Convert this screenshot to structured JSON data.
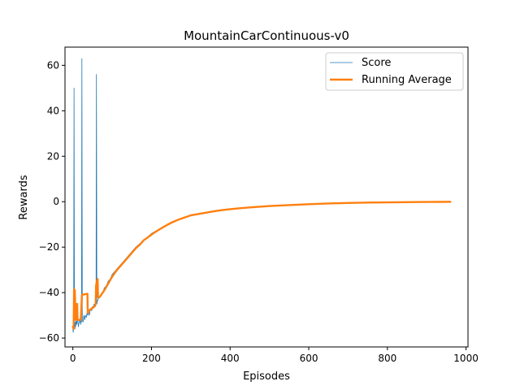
{
  "chart_data": {
    "type": "line",
    "title": "MountainCarContinuous-v0",
    "xlabel": "Episodes",
    "ylabel": "Rewards",
    "xlim": [
      -20,
      1005
    ],
    "ylim": [
      -63.9,
      68
    ],
    "xticks": [
      0,
      200,
      400,
      600,
      800,
      1000
    ],
    "yticks": [
      -60,
      -40,
      -20,
      0,
      20,
      40,
      60
    ],
    "grid": false,
    "legend_position": "top-right",
    "series": [
      {
        "name": "Score",
        "color": "#1f77b4",
        "style": "thin-line",
        "points": [
          [
            0,
            -56
          ],
          [
            1,
            -57.5
          ],
          [
            2,
            -55
          ],
          [
            3,
            50
          ],
          [
            4,
            -54
          ],
          [
            5,
            -56
          ],
          [
            6,
            -53
          ],
          [
            7,
            -55
          ],
          [
            8,
            -52
          ],
          [
            10,
            -54
          ],
          [
            12,
            -51
          ],
          [
            14,
            -55
          ],
          [
            16,
            -53
          ],
          [
            18,
            -52
          ],
          [
            20,
            -54
          ],
          [
            21,
            -51
          ],
          [
            22,
            -53
          ],
          [
            23,
            63
          ],
          [
            24,
            -52
          ],
          [
            26,
            -53
          ],
          [
            28,
            -50
          ],
          [
            30,
            -52
          ],
          [
            32,
            -50
          ],
          [
            34,
            -51
          ],
          [
            36,
            -49
          ],
          [
            38,
            -50
          ],
          [
            40,
            -48
          ],
          [
            42,
            -50
          ],
          [
            44,
            -48
          ],
          [
            46,
            -47
          ],
          [
            48,
            -48
          ],
          [
            50,
            -46
          ],
          [
            52,
            -47
          ],
          [
            54,
            -45
          ],
          [
            56,
            -46
          ],
          [
            58,
            -44
          ],
          [
            59,
            -45
          ],
          [
            60,
            56
          ],
          [
            61,
            -45
          ],
          [
            62,
            -44
          ],
          [
            64,
            -43
          ],
          [
            68,
            -42
          ],
          [
            72,
            -41
          ],
          [
            76,
            -40
          ],
          [
            80,
            -38
          ],
          [
            85,
            -37
          ],
          [
            90,
            -35
          ],
          [
            95,
            -34
          ],
          [
            100,
            -32
          ],
          [
            110,
            -30
          ],
          [
            120,
            -28
          ],
          [
            130,
            -26
          ],
          [
            140,
            -24
          ],
          [
            150,
            -22
          ],
          [
            160,
            -20
          ],
          [
            170,
            -18.5
          ],
          [
            180,
            -17
          ],
          [
            190,
            -15.5
          ],
          [
            200,
            -14
          ],
          [
            210,
            -13
          ],
          [
            220,
            -12
          ],
          [
            230,
            -11
          ],
          [
            240,
            -10
          ],
          [
            250,
            -9
          ],
          [
            260,
            -8.3
          ],
          [
            270,
            -7.6
          ],
          [
            280,
            -7
          ],
          [
            290,
            -6.5
          ],
          [
            300,
            -6
          ],
          [
            320,
            -5.4
          ],
          [
            340,
            -4.8
          ],
          [
            360,
            -4.2
          ],
          [
            380,
            -3.7
          ],
          [
            400,
            -3.3
          ],
          [
            430,
            -2.8
          ],
          [
            460,
            -2.4
          ],
          [
            500,
            -1.9
          ],
          [
            550,
            -1.5
          ],
          [
            600,
            -1.1
          ],
          [
            650,
            -0.8
          ],
          [
            700,
            -0.55
          ],
          [
            750,
            -0.4
          ],
          [
            800,
            -0.28
          ],
          [
            850,
            -0.2
          ],
          [
            900,
            -0.12
          ],
          [
            960,
            -0.05
          ]
        ]
      },
      {
        "name": "Running Average",
        "color": "#ff7f0e",
        "style": "thick-line",
        "points": [
          [
            0,
            -55
          ],
          [
            2,
            -56
          ],
          [
            3,
            -38.5
          ],
          [
            5,
            -39
          ],
          [
            6,
            -46
          ],
          [
            7,
            -52
          ],
          [
            8,
            -45
          ],
          [
            11,
            -45
          ],
          [
            12,
            -52
          ],
          [
            20,
            -52
          ],
          [
            21,
            -49
          ],
          [
            23,
            -41
          ],
          [
            37,
            -40.5
          ],
          [
            38,
            -49
          ],
          [
            39,
            -49
          ],
          [
            40,
            -48
          ],
          [
            48,
            -47
          ],
          [
            56,
            -46
          ],
          [
            58,
            -45
          ],
          [
            59,
            -37
          ],
          [
            61,
            -35
          ],
          [
            63,
            -34
          ],
          [
            64,
            -42
          ],
          [
            68,
            -42
          ],
          [
            72,
            -41
          ],
          [
            80,
            -39
          ],
          [
            90,
            -36
          ],
          [
            100,
            -33
          ],
          [
            110,
            -30.5
          ],
          [
            120,
            -28.5
          ],
          [
            130,
            -26.5
          ],
          [
            140,
            -24.5
          ],
          [
            150,
            -22.5
          ],
          [
            160,
            -20.5
          ],
          [
            170,
            -19
          ],
          [
            180,
            -17
          ],
          [
            190,
            -15.8
          ],
          [
            200,
            -14.5
          ],
          [
            210,
            -13.3
          ],
          [
            220,
            -12.2
          ],
          [
            230,
            -11.2
          ],
          [
            240,
            -10.2
          ],
          [
            250,
            -9.3
          ],
          [
            260,
            -8.5
          ],
          [
            270,
            -7.8
          ],
          [
            280,
            -7.2
          ],
          [
            290,
            -6.6
          ],
          [
            300,
            -6
          ],
          [
            320,
            -5.4
          ],
          [
            340,
            -4.8
          ],
          [
            360,
            -4.2
          ],
          [
            380,
            -3.7
          ],
          [
            400,
            -3.3
          ],
          [
            430,
            -2.8
          ],
          [
            460,
            -2.4
          ],
          [
            500,
            -1.9
          ],
          [
            550,
            -1.5
          ],
          [
            600,
            -1.1
          ],
          [
            650,
            -0.8
          ],
          [
            700,
            -0.55
          ],
          [
            750,
            -0.4
          ],
          [
            800,
            -0.28
          ],
          [
            850,
            -0.2
          ],
          [
            900,
            -0.12
          ],
          [
            960,
            -0.05
          ]
        ]
      }
    ]
  }
}
